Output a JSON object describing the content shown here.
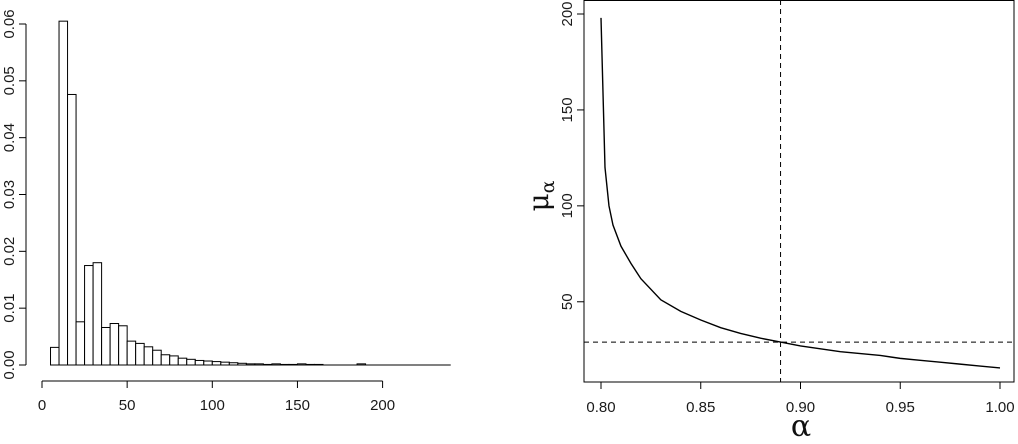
{
  "chart_data": [
    {
      "type": "bar",
      "subtype": "histogram",
      "title": "",
      "xlabel": "",
      "ylabel": "",
      "xlim": [
        0,
        240
      ],
      "ylim": [
        0,
        0.06
      ],
      "x_ticks": [
        "0",
        "50",
        "100",
        "150",
        "200"
      ],
      "y_ticks": [
        "0.00",
        "0.01",
        "0.02",
        "0.03",
        "0.04",
        "0.05",
        "0.06"
      ],
      "bin_width": 5,
      "bins": [
        {
          "x0": 5,
          "x1": 10,
          "value": 0.0031
        },
        {
          "x0": 10,
          "x1": 15,
          "value": 0.0605
        },
        {
          "x0": 15,
          "x1": 20,
          "value": 0.0476
        },
        {
          "x0": 20,
          "x1": 25,
          "value": 0.0076
        },
        {
          "x0": 25,
          "x1": 30,
          "value": 0.0175
        },
        {
          "x0": 30,
          "x1": 35,
          "value": 0.018
        },
        {
          "x0": 35,
          "x1": 40,
          "value": 0.0066
        },
        {
          "x0": 40,
          "x1": 45,
          "value": 0.0073
        },
        {
          "x0": 45,
          "x1": 50,
          "value": 0.0069
        },
        {
          "x0": 50,
          "x1": 55,
          "value": 0.0042
        },
        {
          "x0": 55,
          "x1": 60,
          "value": 0.0038
        },
        {
          "x0": 60,
          "x1": 65,
          "value": 0.0032
        },
        {
          "x0": 65,
          "x1": 70,
          "value": 0.0026
        },
        {
          "x0": 70,
          "x1": 75,
          "value": 0.0018
        },
        {
          "x0": 75,
          "x1": 80,
          "value": 0.0016
        },
        {
          "x0": 80,
          "x1": 85,
          "value": 0.0012
        },
        {
          "x0": 85,
          "x1": 90,
          "value": 0.001
        },
        {
          "x0": 90,
          "x1": 95,
          "value": 0.0008
        },
        {
          "x0": 95,
          "x1": 100,
          "value": 0.0007
        },
        {
          "x0": 100,
          "x1": 105,
          "value": 0.0006
        },
        {
          "x0": 105,
          "x1": 110,
          "value": 0.0005
        },
        {
          "x0": 110,
          "x1": 115,
          "value": 0.0004
        },
        {
          "x0": 115,
          "x1": 120,
          "value": 0.0003
        },
        {
          "x0": 120,
          "x1": 125,
          "value": 0.0002
        },
        {
          "x0": 125,
          "x1": 130,
          "value": 0.0002
        },
        {
          "x0": 130,
          "x1": 135,
          "value": 0.0001
        },
        {
          "x0": 135,
          "x1": 140,
          "value": 0.0002
        },
        {
          "x0": 140,
          "x1": 145,
          "value": 0.0001
        },
        {
          "x0": 145,
          "x1": 150,
          "value": 0.0001
        },
        {
          "x0": 150,
          "x1": 155,
          "value": 0.0002
        },
        {
          "x0": 155,
          "x1": 160,
          "value": 0.0001
        },
        {
          "x0": 160,
          "x1": 165,
          "value": 0.0001
        },
        {
          "x0": 185,
          "x1": 190,
          "value": 0.0002
        }
      ],
      "baseline_range": [
        5,
        240
      ],
      "fill": "#ffffff",
      "stroke": "#000000"
    },
    {
      "type": "line",
      "title": "",
      "xlabel": "α",
      "ylabel": "μ",
      "ylabel_subscript": "α",
      "xlim": [
        0.8,
        1.0
      ],
      "ylim": [
        15,
        200
      ],
      "x_ticks": [
        "0.80",
        "0.85",
        "0.90",
        "0.95",
        "1.00"
      ],
      "y_ticks": [
        "50",
        "100",
        "150",
        "200"
      ],
      "grid": false,
      "series": [
        {
          "x": [
            0.8,
            0.802,
            0.804,
            0.806,
            0.81,
            0.815,
            0.82,
            0.83,
            0.84,
            0.85,
            0.86,
            0.87,
            0.88,
            0.89,
            0.9,
            0.91,
            0.92,
            0.93,
            0.94,
            0.95,
            0.96,
            0.97,
            0.98,
            0.99,
            1.0
          ],
          "y": [
            198,
            120,
            100,
            90,
            79,
            70,
            62,
            51,
            45,
            40.5,
            36.5,
            33.5,
            31,
            29,
            27,
            25.5,
            24,
            23,
            22,
            20.5,
            19.5,
            18.5,
            17.5,
            16.5,
            15.5
          ]
        }
      ],
      "reference_lines": {
        "vertical_x": 0.89,
        "horizontal_y": 29,
        "style": "dashed"
      },
      "color": "#000000"
    }
  ]
}
